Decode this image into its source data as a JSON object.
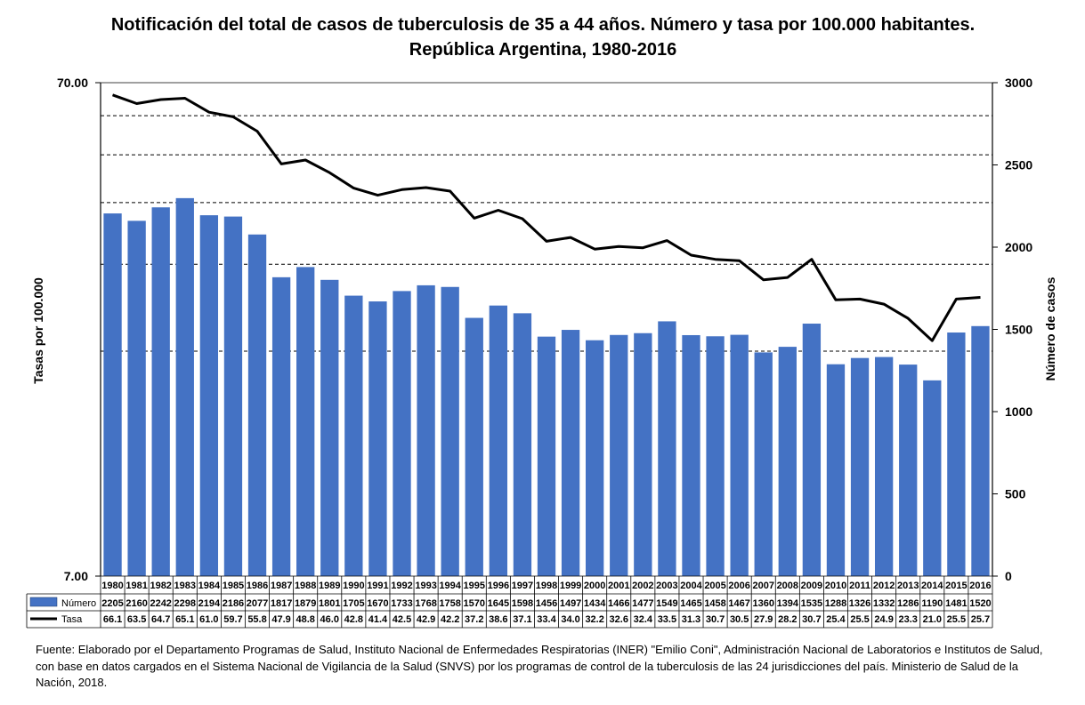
{
  "chart_data": {
    "type": "bar",
    "title": "Notificación del total de casos de tuberculosis de 35 a 44 años. Número y tasa por 100.000 habitantes. República Argentina, 1980-2016",
    "ylabel_left": "Tasas por 100.000",
    "ylabel_right": "Número de casos",
    "left_axis": {
      "scale": "log",
      "ylim": [
        7,
        70
      ],
      "tick_labels": [
        "70.00",
        "7.00"
      ]
    },
    "right_axis": {
      "scale": "linear",
      "ylim": [
        0,
        3000
      ],
      "ticks": [
        0,
        500,
        1000,
        1500,
        2000,
        2500,
        3000
      ]
    },
    "grid": "dashed horizontal",
    "categories": [
      "1980",
      "1981",
      "1982",
      "1983",
      "1984",
      "1985",
      "1986",
      "1987",
      "1988",
      "1989",
      "1990",
      "1991",
      "1992",
      "1993",
      "1994",
      "1995",
      "1996",
      "1997",
      "1998",
      "1999",
      "2000",
      "2001",
      "2002",
      "2003",
      "2004",
      "2005",
      "2006",
      "2007",
      "2008",
      "2009",
      "2010",
      "2011",
      "2012",
      "2013",
      "2014",
      "2015",
      "2016"
    ],
    "series": [
      {
        "name": "Número",
        "type": "bar",
        "axis": "right",
        "color": "#4472c4",
        "values": [
          2205,
          2160,
          2242,
          2298,
          2194,
          2186,
          2077,
          1817,
          1879,
          1801,
          1705,
          1670,
          1733,
          1768,
          1758,
          1570,
          1645,
          1598,
          1456,
          1497,
          1434,
          1466,
          1477,
          1549,
          1465,
          1458,
          1467,
          1360,
          1394,
          1535,
          1288,
          1326,
          1332,
          1286,
          1190,
          1481,
          1520
        ]
      },
      {
        "name": "Tasa",
        "type": "line",
        "axis": "left",
        "color": "#000000",
        "values": [
          66.1,
          63.5,
          64.7,
          65.1,
          61.0,
          59.7,
          55.8,
          47.9,
          48.8,
          46.0,
          42.8,
          41.4,
          42.5,
          42.9,
          42.2,
          37.2,
          38.6,
          37.1,
          33.4,
          34.0,
          32.2,
          32.6,
          32.4,
          33.5,
          31.3,
          30.7,
          30.5,
          27.9,
          28.2,
          30.7,
          25.4,
          25.5,
          24.9,
          23.3,
          21.0,
          25.5,
          25.7
        ]
      }
    ],
    "table_labels": [
      "2205",
      "2160",
      "2242",
      "2298",
      "2194",
      "2186",
      "2077",
      "1817",
      "1879",
      "1801",
      "1705",
      "1670",
      "1733",
      "1768",
      "1758",
      "1570",
      "1645",
      "1598",
      "1456",
      "1497",
      "1434",
      "1466",
      "1477",
      "1549",
      "1465",
      "1458",
      "1467",
      "1360",
      "1394",
      "1535",
      "1288",
      "1326",
      "1332",
      "1286",
      "1190",
      "1481",
      "1520"
    ],
    "tasa_labels": [
      "66.1",
      "63.5",
      "64.7",
      "65.1",
      "61.0",
      "59.7",
      "55.8",
      "47.9",
      "48.8",
      "46.0",
      "42.8",
      "41.4",
      "42.5",
      "42.9",
      "42.2",
      "37.2",
      "38.6",
      "37.1",
      "33.4",
      "34.0",
      "32.2",
      "32.6",
      "32.4",
      "33.5",
      "31.3",
      "30.7",
      "30.5",
      "27.9",
      "28.2",
      "30.7",
      "25.4",
      "25.5",
      "24.9",
      "23.3",
      "21.0",
      "25.5",
      "25.7"
    ]
  },
  "footnote": "Fuente: Elaborado por el Departamento Programas de Salud, Instituto Nacional de Enfermedades Respiratorias (INER) \"Emilio Coni\", Administración Nacional de Laboratorios e Institutos de Salud, con base en datos cargados  en el Sistema Nacional de Vigilancia de la Salud (SNVS) por los programas de control de la tuberculosis de las 24  jurisdicciones del país. Ministerio de Salud de la Nación, 2018."
}
